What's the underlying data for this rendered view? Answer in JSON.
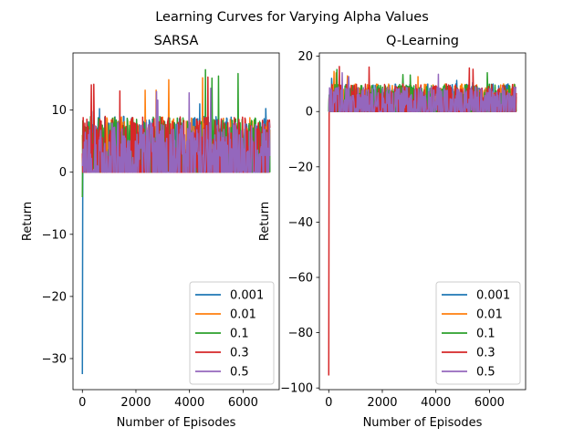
{
  "figure": {
    "suptitle": "Learning Curves for Varying Alpha Values"
  },
  "chart_data": [
    {
      "type": "line",
      "title": "SARSA",
      "xlabel": "Number of Episodes",
      "ylabel": "Return",
      "xlim": [
        -350,
        7350
      ],
      "ylim": [
        -35,
        19.2
      ],
      "xticks": [
        0,
        2000,
        4000,
        6000
      ],
      "yticks": [
        -30,
        -20,
        -10,
        0,
        10
      ],
      "xtick_labels": [
        "0",
        "2000",
        "4000",
        "6000"
      ],
      "ytick_labels": [
        "−30",
        "−20",
        "−10",
        "0",
        "10"
      ],
      "grid": false,
      "legend_position": "lower-right",
      "episodes": 7000,
      "series": [
        {
          "name": "0.001",
          "color": "#1f77b4",
          "start": -32.5,
          "baseline": 0,
          "typical_max": 9,
          "peak": 11
        },
        {
          "name": "0.01",
          "color": "#ff7f0e",
          "start": 6,
          "baseline": 0,
          "typical_max": 9,
          "peak": 15.2
        },
        {
          "name": "0.1",
          "color": "#2ca02c",
          "start": -4,
          "baseline": 0,
          "typical_max": 9,
          "peak": 16.5
        },
        {
          "name": "0.3",
          "color": "#d62728",
          "start": 3,
          "baseline": 0,
          "typical_max": 9,
          "peak": 15.3
        },
        {
          "name": "0.5",
          "color": "#9467bd",
          "start": 1,
          "baseline": 0,
          "typical_max": 8,
          "peak": 13.5
        }
      ]
    },
    {
      "type": "line",
      "title": "Q-Learning",
      "xlabel": "Number of Episodes",
      "ylabel": "Return",
      "xlim": [
        -350,
        7350
      ],
      "ylim": [
        -100.6,
        21.2
      ],
      "xticks": [
        0,
        2000,
        4000,
        6000
      ],
      "yticks": [
        -100,
        -80,
        -60,
        -40,
        -20,
        0,
        20
      ],
      "xtick_labels": [
        "0",
        "2000",
        "4000",
        "6000"
      ],
      "ytick_labels": [
        "−100",
        "−80",
        "−60",
        "−40",
        "−20",
        "0",
        "20"
      ],
      "grid": false,
      "legend_position": "lower-right",
      "episodes": 7000,
      "series": [
        {
          "name": "0.001",
          "color": "#1f77b4",
          "start": 0,
          "baseline": 0,
          "typical_max": 10,
          "peak": 12
        },
        {
          "name": "0.01",
          "color": "#ff7f0e",
          "start": 0,
          "baseline": 0,
          "typical_max": 10,
          "peak": 14.5
        },
        {
          "name": "0.1",
          "color": "#2ca02c",
          "start": 0,
          "baseline": 0,
          "typical_max": 10,
          "peak": 15.2
        },
        {
          "name": "0.3",
          "color": "#d62728",
          "start": -95.5,
          "baseline": 0,
          "typical_max": 10,
          "peak": 16.3
        },
        {
          "name": "0.5",
          "color": "#9467bd",
          "start": 0,
          "baseline": 0,
          "typical_max": 9,
          "peak": 14
        }
      ]
    }
  ]
}
